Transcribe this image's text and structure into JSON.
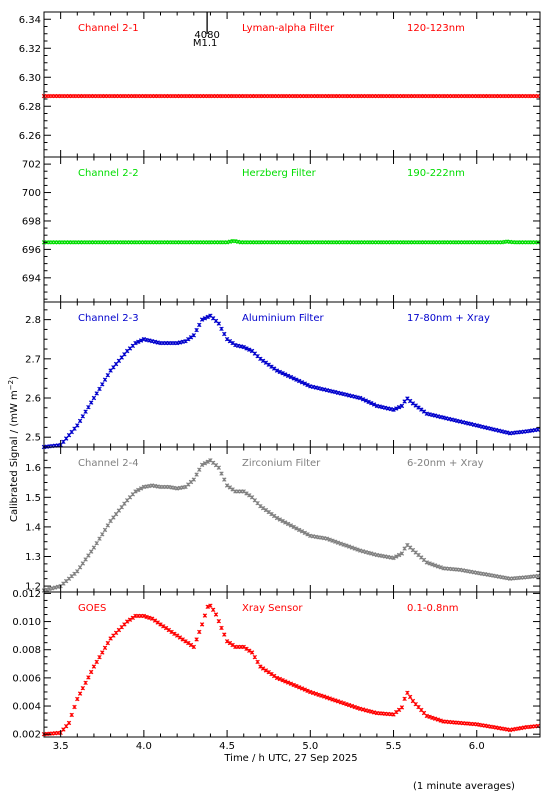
{
  "chart_data": {
    "type": "scatter",
    "xlabel": "Time / h UTC, 27 Sep 2025",
    "ylabel": "Calibrated Signal / (mW m",
    "ylabel_sup": "−2",
    "ylabel_end": ")",
    "xlim": [
      3.4,
      6.38
    ],
    "xticks": [
      {
        "v": 3.5,
        "label": "3.5"
      },
      {
        "v": 4.0,
        "label": "4.0"
      },
      {
        "v": 4.5,
        "label": "4.5"
      },
      {
        "v": 5.0,
        "label": "5.0"
      },
      {
        "v": 5.5,
        "label": "5.5"
      },
      {
        "v": 6.0,
        "label": "6.0"
      }
    ],
    "flare_marker": {
      "x": 4.38,
      "label1": "4080",
      "label2": "M1.1"
    },
    "footnote": "(1 minute averages)",
    "panels": [
      {
        "channel": "Channel 2-1",
        "filter": "Lyman-alpha Filter",
        "range": "120-123nm",
        "color": "#ff0000",
        "ylim": [
          6.245,
          6.345
        ],
        "yticks": [
          {
            "v": 6.26,
            "label": "6.26"
          },
          {
            "v": 6.28,
            "label": "6.28"
          },
          {
            "v": 6.3,
            "label": "6.30"
          },
          {
            "v": 6.32,
            "label": "6.32"
          },
          {
            "v": 6.34,
            "label": "6.34"
          }
        ],
        "curve": [
          [
            3.4,
            6.287
          ],
          [
            6.38,
            6.287
          ]
        ]
      },
      {
        "channel": "Channel 2-2",
        "filter": "Herzberg Filter",
        "range": "190-222nm",
        "color": "#00dd00",
        "ylim": [
          692.3,
          702.5
        ],
        "yticks": [
          {
            "v": 694,
            "label": "694"
          },
          {
            "v": 696,
            "label": "696"
          },
          {
            "v": 698,
            "label": "698"
          },
          {
            "v": 700,
            "label": "700"
          },
          {
            "v": 702,
            "label": "702"
          }
        ],
        "curve": [
          [
            3.4,
            696.5
          ],
          [
            4.5,
            696.5
          ],
          [
            4.54,
            696.6
          ],
          [
            4.58,
            696.5
          ],
          [
            6.15,
            696.5
          ],
          [
            6.18,
            696.55
          ],
          [
            6.22,
            696.5
          ],
          [
            6.38,
            696.5
          ]
        ]
      },
      {
        "channel": "Channel 2-3",
        "filter": "Aluminium Filter",
        "range": "17-80nm + Xray",
        "color": "#0000cc",
        "ylim": [
          2.475,
          2.845
        ],
        "yticks": [
          {
            "v": 2.5,
            "label": "2.5"
          },
          {
            "v": 2.6,
            "label": "2.6"
          },
          {
            "v": 2.7,
            "label": "2.7"
          },
          {
            "v": 2.8,
            "label": "2.8"
          }
        ],
        "curve": [
          [
            3.4,
            2.475
          ],
          [
            3.5,
            2.48
          ],
          [
            3.6,
            2.53
          ],
          [
            3.7,
            2.6
          ],
          [
            3.8,
            2.67
          ],
          [
            3.9,
            2.72
          ],
          [
            3.95,
            2.74
          ],
          [
            4.0,
            2.75
          ],
          [
            4.05,
            2.745
          ],
          [
            4.1,
            2.74
          ],
          [
            4.15,
            2.74
          ],
          [
            4.2,
            2.74
          ],
          [
            4.25,
            2.745
          ],
          [
            4.3,
            2.76
          ],
          [
            4.35,
            2.8
          ],
          [
            4.4,
            2.81
          ],
          [
            4.45,
            2.79
          ],
          [
            4.5,
            2.75
          ],
          [
            4.55,
            2.735
          ],
          [
            4.6,
            2.73
          ],
          [
            4.65,
            2.72
          ],
          [
            4.7,
            2.7
          ],
          [
            4.8,
            2.67
          ],
          [
            4.9,
            2.65
          ],
          [
            5.0,
            2.63
          ],
          [
            5.1,
            2.62
          ],
          [
            5.2,
            2.61
          ],
          [
            5.3,
            2.6
          ],
          [
            5.4,
            2.58
          ],
          [
            5.5,
            2.57
          ],
          [
            5.55,
            2.58
          ],
          [
            5.58,
            2.6
          ],
          [
            5.62,
            2.585
          ],
          [
            5.7,
            2.56
          ],
          [
            5.8,
            2.55
          ],
          [
            5.9,
            2.54
          ],
          [
            6.0,
            2.53
          ],
          [
            6.1,
            2.52
          ],
          [
            6.2,
            2.51
          ],
          [
            6.3,
            2.515
          ],
          [
            6.38,
            2.52
          ]
        ]
      },
      {
        "channel": "Channel 2-4",
        "filter": "Zirconium Filter",
        "range": "6-20nm + Xray",
        "color": "#808080",
        "ylim": [
          1.18,
          1.67
        ],
        "yticks": [
          {
            "v": 1.2,
            "label": "1.2"
          },
          {
            "v": 1.3,
            "label": "1.3"
          },
          {
            "v": 1.4,
            "label": "1.4"
          },
          {
            "v": 1.5,
            "label": "1.5"
          },
          {
            "v": 1.6,
            "label": "1.6"
          }
        ],
        "curve": [
          [
            3.4,
            1.185
          ],
          [
            3.5,
            1.2
          ],
          [
            3.6,
            1.25
          ],
          [
            3.7,
            1.33
          ],
          [
            3.8,
            1.42
          ],
          [
            3.9,
            1.49
          ],
          [
            3.95,
            1.52
          ],
          [
            4.0,
            1.535
          ],
          [
            4.05,
            1.54
          ],
          [
            4.1,
            1.535
          ],
          [
            4.15,
            1.535
          ],
          [
            4.2,
            1.53
          ],
          [
            4.25,
            1.535
          ],
          [
            4.3,
            1.56
          ],
          [
            4.35,
            1.61
          ],
          [
            4.4,
            1.625
          ],
          [
            4.45,
            1.6
          ],
          [
            4.5,
            1.54
          ],
          [
            4.55,
            1.52
          ],
          [
            4.6,
            1.52
          ],
          [
            4.65,
            1.5
          ],
          [
            4.7,
            1.47
          ],
          [
            4.8,
            1.43
          ],
          [
            4.9,
            1.4
          ],
          [
            5.0,
            1.37
          ],
          [
            5.1,
            1.36
          ],
          [
            5.2,
            1.34
          ],
          [
            5.3,
            1.32
          ],
          [
            5.4,
            1.305
          ],
          [
            5.5,
            1.295
          ],
          [
            5.55,
            1.31
          ],
          [
            5.58,
            1.34
          ],
          [
            5.62,
            1.32
          ],
          [
            5.7,
            1.28
          ],
          [
            5.8,
            1.26
          ],
          [
            5.9,
            1.255
          ],
          [
            6.0,
            1.245
          ],
          [
            6.1,
            1.235
          ],
          [
            6.2,
            1.225
          ],
          [
            6.3,
            1.23
          ],
          [
            6.38,
            1.235
          ]
        ]
      },
      {
        "channel": "GOES",
        "filter": "Xray Sensor",
        "range": "0.1-0.8nm",
        "color": "#ff0000",
        "ylim": [
          0.0018,
          0.0121
        ],
        "yticks": [
          {
            "v": 0.002,
            "label": "0.002"
          },
          {
            "v": 0.004,
            "label": "0.004"
          },
          {
            "v": 0.006,
            "label": "0.006"
          },
          {
            "v": 0.008,
            "label": "0.008"
          },
          {
            "v": 0.01,
            "label": "0.010"
          },
          {
            "v": 0.012,
            "label": "0.012"
          }
        ],
        "curve": [
          [
            3.4,
            0.002
          ],
          [
            3.5,
            0.0021
          ],
          [
            3.55,
            0.0028
          ],
          [
            3.6,
            0.0045
          ],
          [
            3.7,
            0.0068
          ],
          [
            3.8,
            0.0088
          ],
          [
            3.9,
            0.01
          ],
          [
            3.95,
            0.0104
          ],
          [
            4.0,
            0.0104
          ],
          [
            4.05,
            0.0102
          ],
          [
            4.1,
            0.0098
          ],
          [
            4.2,
            0.009
          ],
          [
            4.3,
            0.0082
          ],
          [
            4.35,
            0.0098
          ],
          [
            4.39,
            0.0113
          ],
          [
            4.43,
            0.0106
          ],
          [
            4.5,
            0.0086
          ],
          [
            4.55,
            0.0082
          ],
          [
            4.6,
            0.0082
          ],
          [
            4.65,
            0.0078
          ],
          [
            4.7,
            0.0068
          ],
          [
            4.8,
            0.006
          ],
          [
            4.9,
            0.0055
          ],
          [
            5.0,
            0.005
          ],
          [
            5.1,
            0.0046
          ],
          [
            5.2,
            0.0042
          ],
          [
            5.3,
            0.0038
          ],
          [
            5.4,
            0.0035
          ],
          [
            5.5,
            0.0034
          ],
          [
            5.55,
            0.0039
          ],
          [
            5.58,
            0.005
          ],
          [
            5.62,
            0.0043
          ],
          [
            5.7,
            0.0033
          ],
          [
            5.8,
            0.0029
          ],
          [
            5.9,
            0.0028
          ],
          [
            6.0,
            0.0027
          ],
          [
            6.1,
            0.0025
          ],
          [
            6.2,
            0.0023
          ],
          [
            6.3,
            0.0025
          ],
          [
            6.38,
            0.0026
          ]
        ]
      }
    ]
  }
}
